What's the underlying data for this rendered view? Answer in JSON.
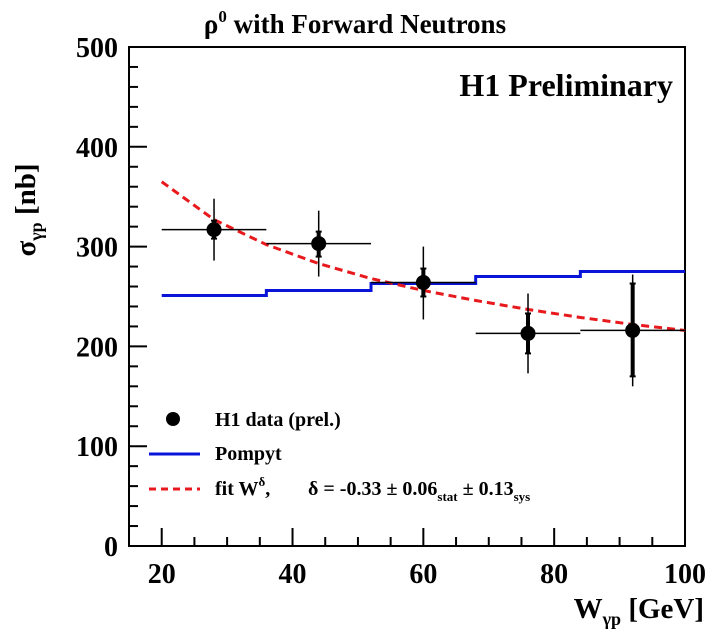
{
  "chart_data": {
    "type": "scatter",
    "title": "ρ",
    "title_sup": "0",
    "title_rest": " with Forward Neutrons",
    "label": "H1 Preliminary",
    "xlabel": "W",
    "xlabel_sub": "γp",
    "xlabel_unit": " [GeV]",
    "ylabel": "σ",
    "ylabel_sub": "γp",
    "ylabel_unit": " [nb]",
    "xlim": [
      15,
      100
    ],
    "ylim": [
      0,
      500
    ],
    "xticks": [
      20,
      40,
      60,
      80,
      100
    ],
    "yticks": [
      0,
      100,
      200,
      300,
      400,
      500
    ],
    "grid": false,
    "legend_position": "bottom-left",
    "series": [
      {
        "name": "H1 data (prel.)",
        "kind": "points",
        "color": "#000000",
        "points": [
          {
            "x": 28,
            "y": 317,
            "x_lo": 20,
            "x_hi": 36,
            "stat_lo": 308,
            "stat_hi": 326,
            "tot_lo": 286,
            "tot_hi": 348
          },
          {
            "x": 44,
            "y": 303,
            "x_lo": 36,
            "x_hi": 52,
            "stat_lo": 290,
            "stat_hi": 315,
            "tot_lo": 270,
            "tot_hi": 336
          },
          {
            "x": 60,
            "y": 264,
            "x_lo": 52,
            "x_hi": 68,
            "stat_lo": 250,
            "stat_hi": 278,
            "tot_lo": 227,
            "tot_hi": 300
          },
          {
            "x": 76,
            "y": 213,
            "x_lo": 68,
            "x_hi": 84,
            "stat_lo": 193,
            "stat_hi": 233,
            "tot_lo": 173,
            "tot_hi": 253
          },
          {
            "x": 92,
            "y": 216,
            "x_lo": 84,
            "x_hi": 100,
            "stat_lo": 170,
            "stat_hi": 263,
            "tot_lo": 160,
            "tot_hi": 272
          }
        ]
      },
      {
        "name": "Pompyt",
        "kind": "step",
        "color": "#0a14d8",
        "bins": [
          {
            "x_lo": 20,
            "x_hi": 36,
            "y": 251
          },
          {
            "x_lo": 36,
            "x_hi": 52,
            "y": 256
          },
          {
            "x_lo": 52,
            "x_hi": 68,
            "y": 263
          },
          {
            "x_lo": 68,
            "x_hi": 84,
            "y": 270
          },
          {
            "x_lo": 84,
            "x_hi": 100,
            "y": 275
          }
        ]
      },
      {
        "name": "fit W",
        "kind": "curve",
        "color": "#e8191c",
        "x": [
          20,
          28,
          36,
          44,
          52,
          60,
          68,
          76,
          84,
          92,
          100
        ],
        "y": [
          365,
          327,
          302,
          283,
          268,
          256,
          246,
          237,
          229,
          222,
          216
        ]
      }
    ],
    "legend": {
      "data": "H1 data (prel.)",
      "model": "Pompyt",
      "fit_prefix": "fit W",
      "fit_sup": "δ",
      "fit_comma": ",",
      "fit_delta": "δ = -0.33 ± 0.06",
      "fit_stat": "stat",
      "fit_pm": " ± 0.13",
      "fit_sys": "sys"
    }
  }
}
